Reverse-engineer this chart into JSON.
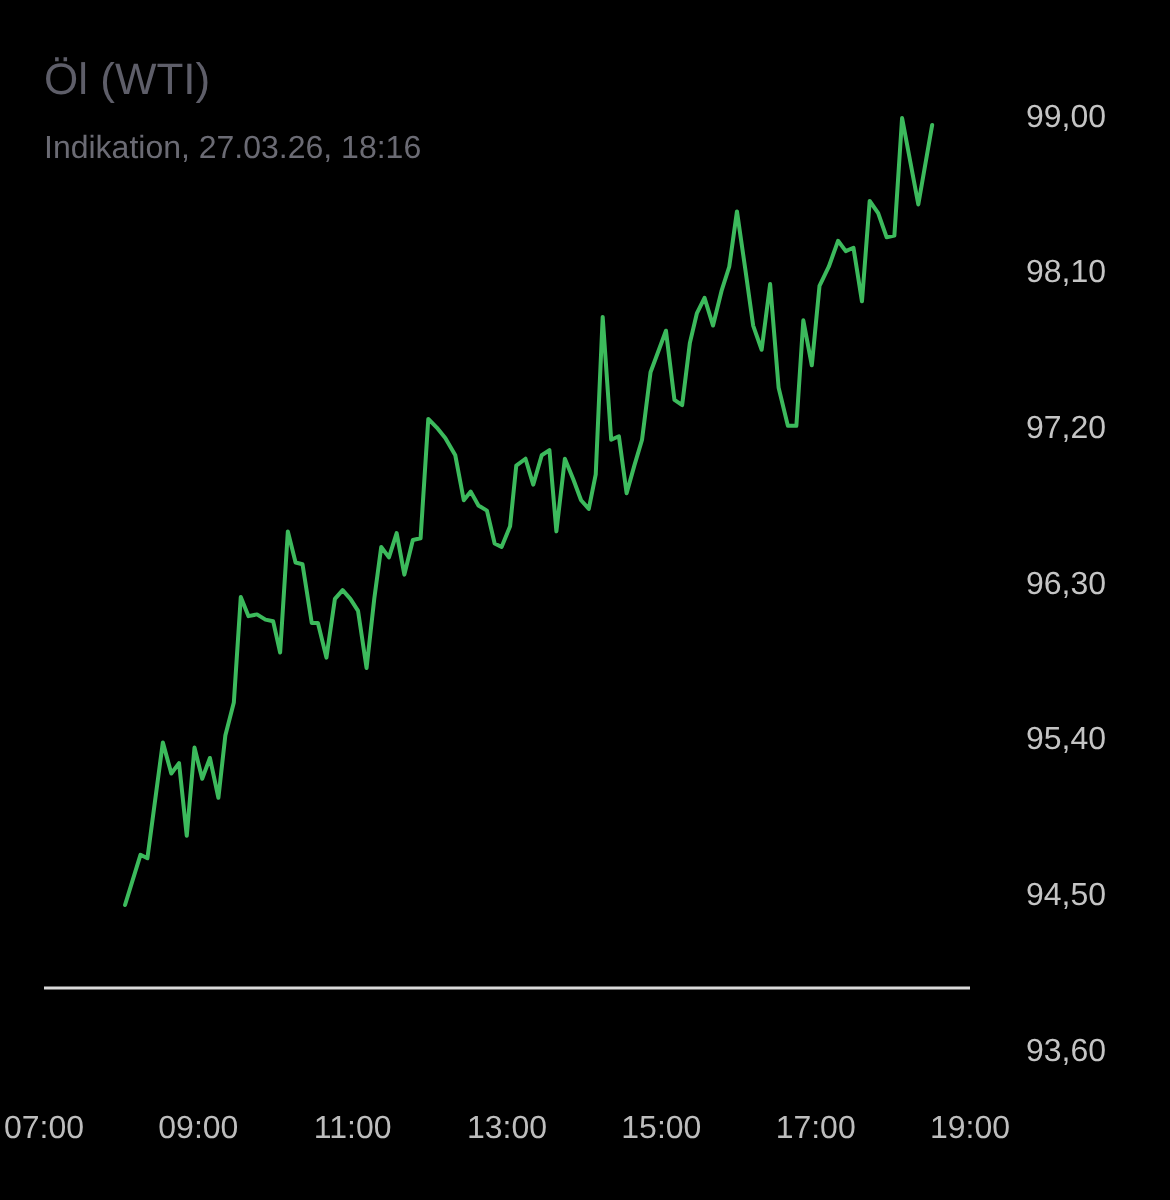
{
  "chart_data": {
    "type": "line",
    "title": "Öl (WTI)",
    "subtitle": "Indikation, 27.03.26, 18:16",
    "x": [
      8.05,
      8.25,
      8.34,
      8.54,
      8.65,
      8.75,
      8.85,
      8.95,
      9.05,
      9.15,
      9.26,
      9.35,
      9.46,
      9.55,
      9.65,
      9.76,
      9.87,
      9.97,
      10.06,
      10.16,
      10.26,
      10.35,
      10.47,
      10.55,
      10.66,
      10.77,
      10.87,
      10.97,
      11.07,
      11.18,
      11.28,
      11.37,
      11.47,
      11.57,
      11.67,
      11.78,
      11.88,
      11.98,
      12.09,
      12.2,
      12.33,
      12.44,
      12.53,
      12.63,
      12.74,
      12.84,
      12.93,
      13.04,
      13.12,
      13.24,
      13.34,
      13.45,
      13.55,
      13.64,
      13.75,
      13.86,
      13.96,
      14.06,
      14.15,
      14.24,
      14.35,
      14.45,
      14.55,
      14.65,
      14.75,
      14.86,
      14.96,
      15.06,
      15.17,
      15.27,
      15.37,
      15.46,
      15.56,
      15.67,
      15.78,
      15.88,
      15.98,
      16.09,
      16.19,
      16.3,
      16.41,
      16.52,
      16.64,
      16.75,
      16.84,
      16.95,
      17.05,
      17.17,
      17.29,
      17.39,
      17.49,
      17.6,
      17.7,
      17.81,
      17.92,
      18.02,
      18.12,
      18.33,
      18.51
    ],
    "values": [
      94.45,
      94.74,
      94.72,
      95.39,
      95.21,
      95.27,
      94.85,
      95.36,
      95.18,
      95.3,
      95.07,
      95.43,
      95.62,
      96.23,
      96.12,
      96.13,
      96.1,
      96.09,
      95.91,
      96.61,
      96.43,
      96.42,
      96.08,
      96.08,
      95.88,
      96.22,
      96.27,
      96.22,
      96.15,
      95.82,
      96.22,
      96.52,
      96.46,
      96.6,
      96.36,
      96.56,
      96.57,
      97.26,
      97.21,
      97.15,
      97.05,
      96.79,
      96.84,
      96.76,
      96.73,
      96.54,
      96.52,
      96.64,
      96.99,
      97.03,
      96.88,
      97.05,
      97.08,
      96.61,
      97.03,
      96.91,
      96.79,
      96.74,
      96.94,
      97.85,
      97.14,
      97.16,
      96.83,
      96.99,
      97.14,
      97.53,
      97.65,
      97.77,
      97.37,
      97.34,
      97.7,
      97.87,
      97.96,
      97.8,
      98.0,
      98.14,
      98.46,
      98.12,
      97.8,
      97.66,
      98.04,
      97.44,
      97.22,
      97.22,
      97.83,
      97.57,
      98.03,
      98.14,
      98.29,
      98.23,
      98.25,
      97.94,
      98.52,
      98.45,
      98.31,
      98.32,
      99.0,
      98.5,
      98.96
    ],
    "color": "#3cba5c",
    "xlim": [
      7,
      19
    ],
    "xticks": [
      {
        "value": 7,
        "label": "07:00"
      },
      {
        "value": 9,
        "label": "09:00"
      },
      {
        "value": 11,
        "label": "11:00"
      },
      {
        "value": 13,
        "label": "13:00"
      },
      {
        "value": 15,
        "label": "15:00"
      },
      {
        "value": 17,
        "label": "17:00"
      },
      {
        "value": 19,
        "label": "19:00"
      }
    ],
    "ylim": [
      93.6,
      99.0
    ],
    "yticks": [
      {
        "value": 93.6,
        "label": "93,60"
      },
      {
        "value": 94.5,
        "label": "94,50"
      },
      {
        "value": 95.4,
        "label": "95,40"
      },
      {
        "value": 96.3,
        "label": "96,30"
      },
      {
        "value": 97.2,
        "label": "97,20"
      },
      {
        "value": 98.1,
        "label": "98,10"
      },
      {
        "value": 99,
        "label": "99,00"
      }
    ],
    "ref_lines": [
      {
        "axis": "y",
        "value": 93.97,
        "color": "#d9d9d9"
      }
    ]
  }
}
